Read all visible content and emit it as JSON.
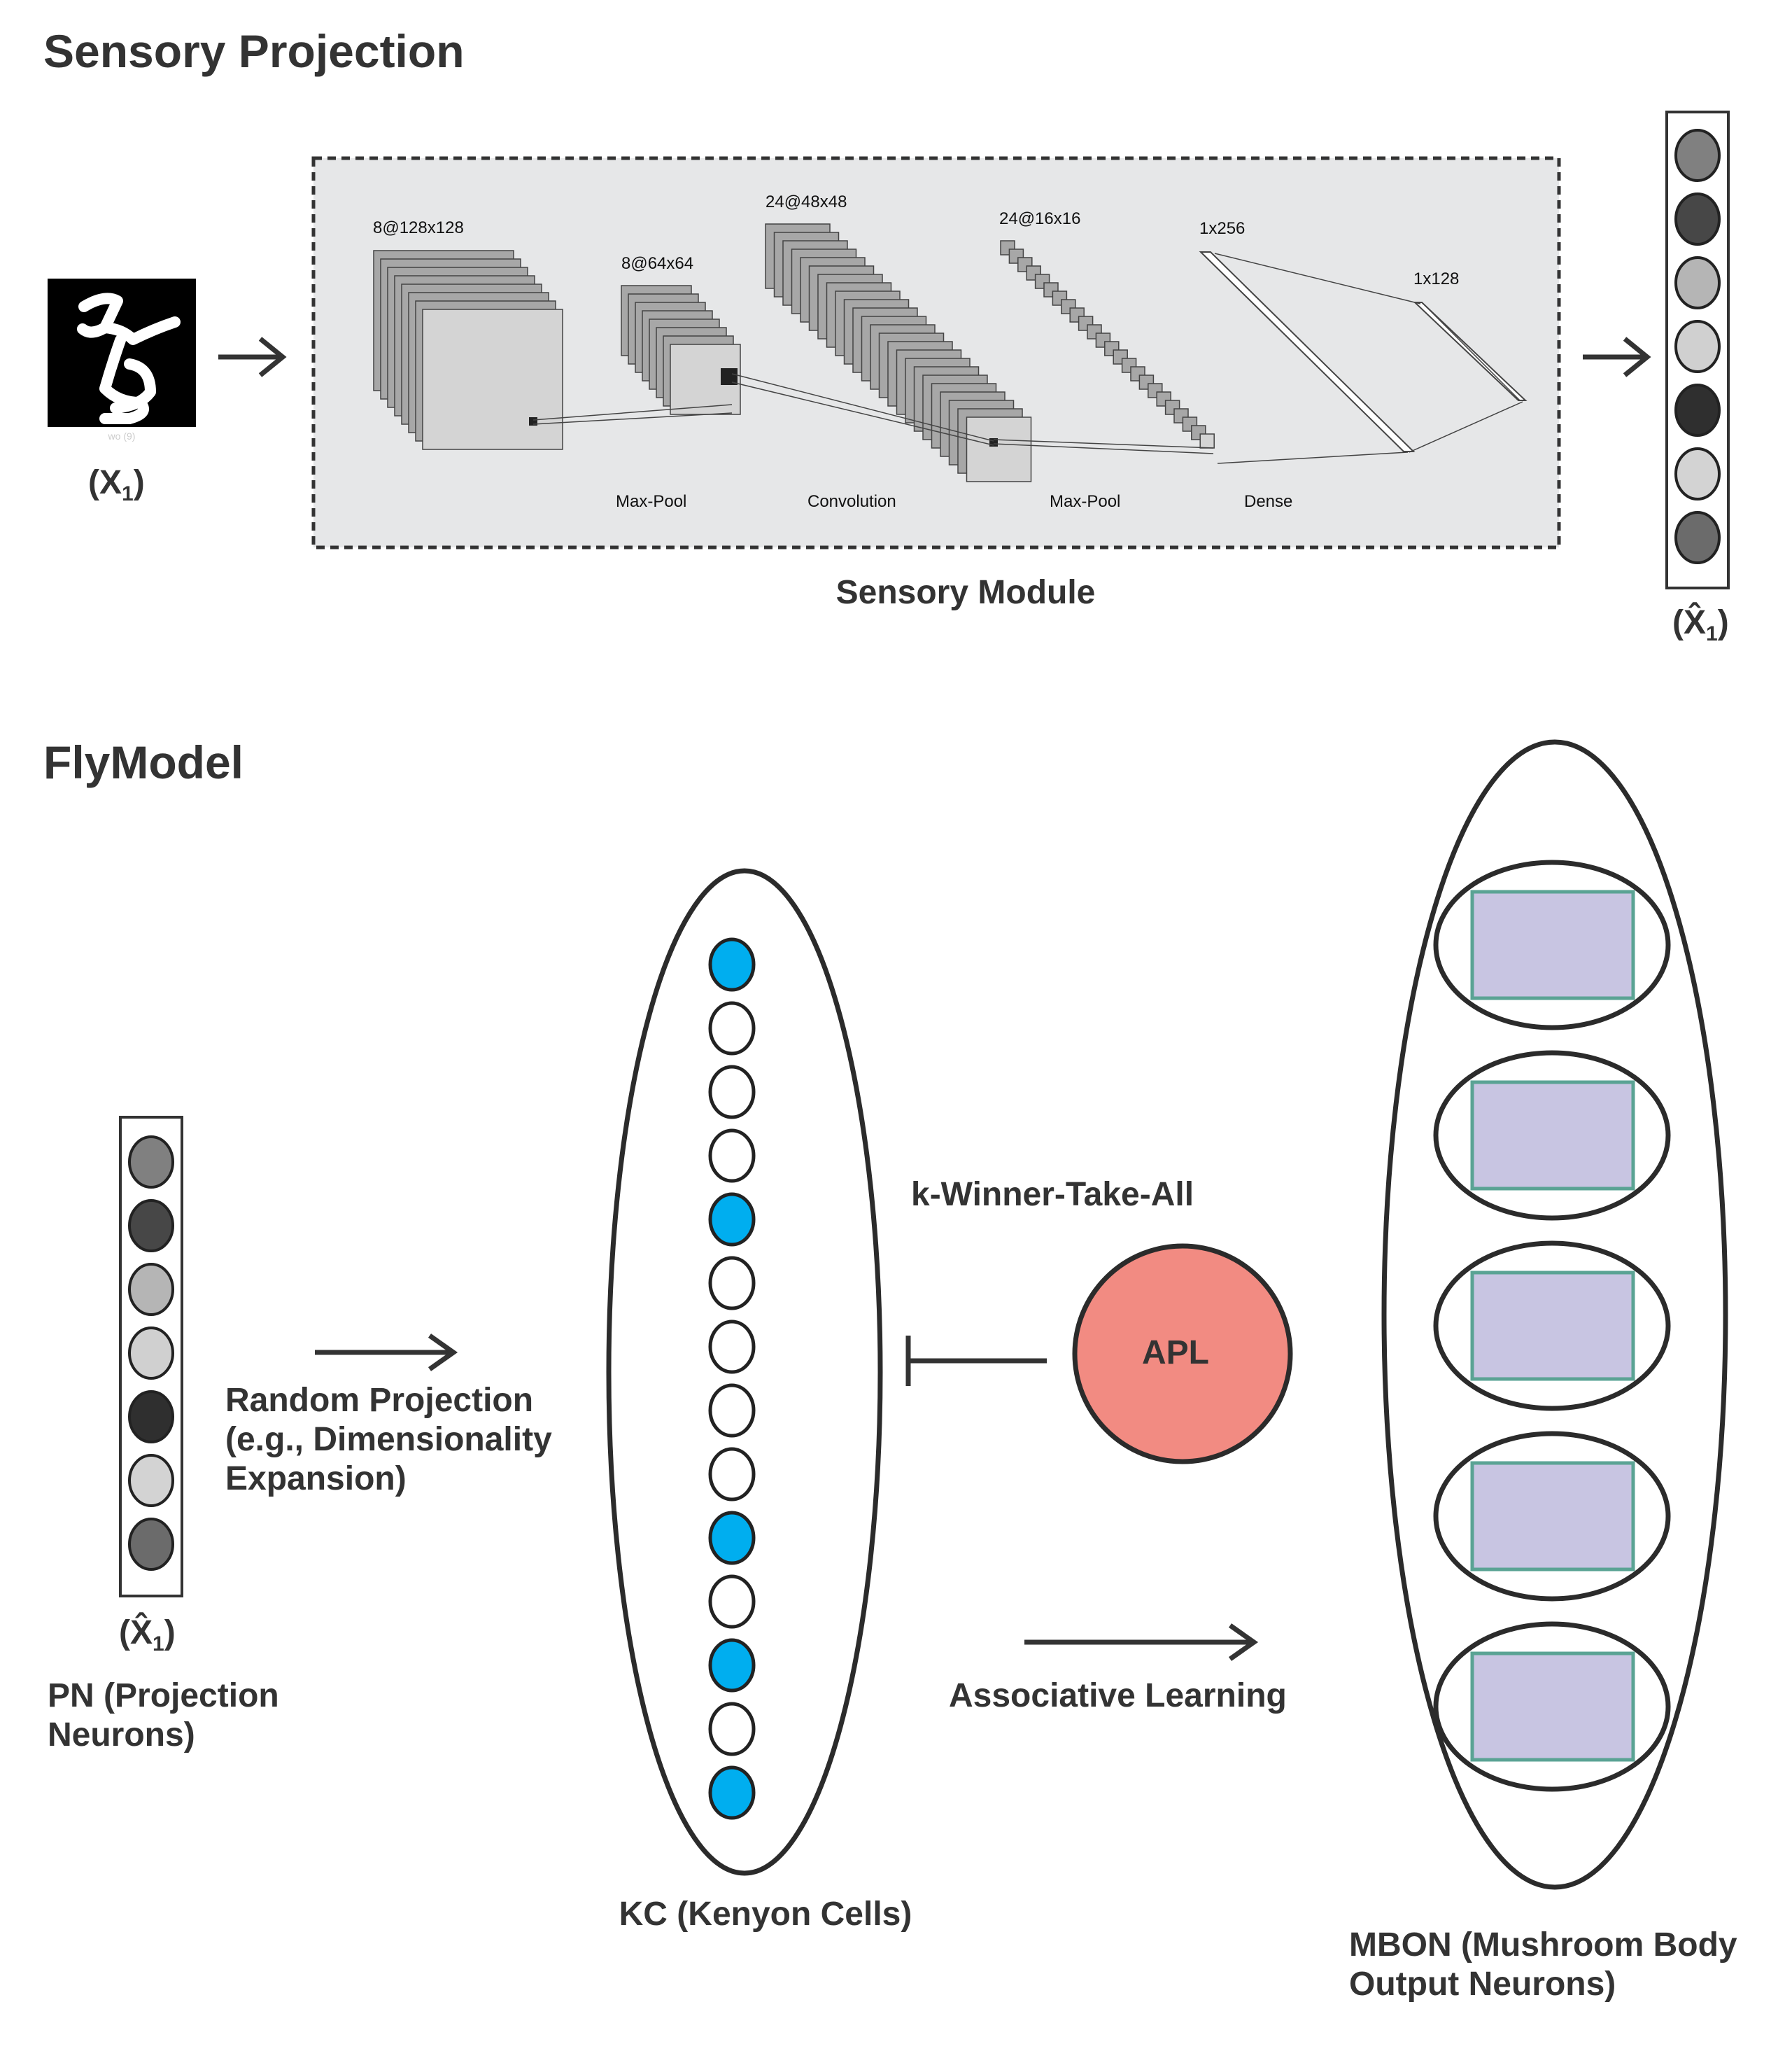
{
  "sensory": {
    "title": "Sensory Projection",
    "module_label": "Sensory Module",
    "input_caption": "wo (9)",
    "input_label": "X",
    "input_sub": "1",
    "output_label": "X̂",
    "output_sub": "1",
    "layers": [
      {
        "shape": "8@128x128",
        "name": "Max-Pool"
      },
      {
        "shape": "8@64x64",
        "name": "Convolution"
      },
      {
        "shape": "24@48x48",
        "name": "Max-Pool"
      },
      {
        "shape": "24@16x16",
        "name": "Dense"
      },
      {
        "shape": "1x256",
        "name": ""
      },
      {
        "shape": "1x128",
        "name": ""
      }
    ],
    "output_vector_colors": [
      "#808080",
      "#474747",
      "#b5b5b5",
      "#d0d0d0",
      "#2f2f2f",
      "#d3d3d3",
      "#6b6b6b"
    ]
  },
  "fly": {
    "title": "FlyModel",
    "pn_label_line1": "PN (Projection",
    "pn_label_line2": "Neurons)",
    "pn_vector_label": "X̂",
    "pn_vector_sub": "1",
    "random_projection_line1": "Random Projection",
    "random_projection_line2": "(e.g., Dimensionality",
    "random_projection_line3": "Expansion)",
    "kc_label": "KC (Kenyon Cells)",
    "kc_active": [
      true,
      false,
      false,
      false,
      true,
      false,
      false,
      false,
      false,
      true,
      false,
      true,
      false,
      true
    ],
    "kwta_label": "k-Winner-Take-All",
    "apl_label": "APL",
    "assoc_label": "Associative Learning",
    "mbon_line1": "MBON (Mushroom Body",
    "mbon_line2": "Output Neurons)",
    "mbon_count": 5
  },
  "colors": {
    "kc_active": "#00aeef",
    "apl": "#f28b82",
    "mbon_rect": "#c8c5e2",
    "mbon_rect_border": "#5aa394",
    "module_bg": "#e6e7e8"
  }
}
